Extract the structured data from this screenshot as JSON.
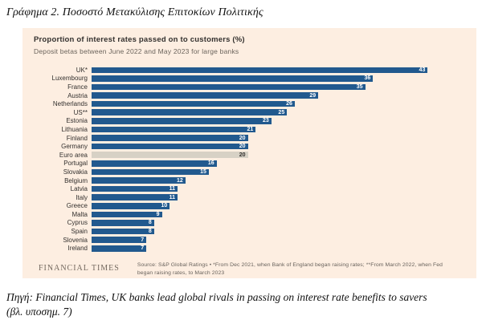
{
  "page": {
    "heading": "Γράφημα 2. Ποσοστό Μετακύλισης Επιτοκίων Πολιτικής",
    "caption_line1": "Πηγή: Financial Times, UK banks lead global rivals in passing on interest rate benefits to savers",
    "caption_line2": "(βλ. υποσημ. 7)"
  },
  "chart": {
    "title": "Proportion of interest rates passed on to customers (%)",
    "subtitle": "Deposit betas between June 2022 and May 2023 for large banks",
    "footer_brand": "FINANCIAL TIMES",
    "footer_source": "Source: S&P Global Ratings • *From Dec 2021, when Bank of England began raising rates; **From March 2022, when Fed began raising rates, to March 2023",
    "colors": {
      "card_background": "#fdeee1",
      "bar": "#21598e",
      "highlight_bar": "#d7d1c5",
      "value_text": "#ffffff",
      "highlight_value_text": "#33302e"
    }
  },
  "chart_data": {
    "type": "bar",
    "orientation": "horizontal",
    "title": "Proportion of interest rates passed on to customers (%)",
    "subtitle": "Deposit betas between June 2022 and May 2023 for large banks",
    "xlabel": "",
    "ylabel": "",
    "xlim": [
      0,
      48
    ],
    "grid": false,
    "legend": false,
    "highlight_category": "Euro area",
    "categories": [
      "UK*",
      "Luxembourg",
      "France",
      "Austria",
      "Netherlands",
      "US**",
      "Estonia",
      "Lithuania",
      "Finland",
      "Germany",
      "Euro area",
      "Portugal",
      "Slovakia",
      "Belgium",
      "Latvia",
      "Italy",
      "Greece",
      "Malta",
      "Cyprus",
      "Spain",
      "Slovenia",
      "Ireland"
    ],
    "values": [
      43,
      36,
      35,
      29,
      26,
      25,
      23,
      21,
      20,
      20,
      20,
      16,
      15,
      12,
      11,
      11,
      10,
      9,
      8,
      8,
      7,
      7
    ]
  }
}
